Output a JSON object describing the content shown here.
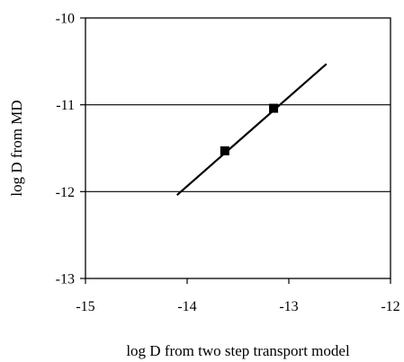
{
  "chart_data": {
    "type": "scatter",
    "title": "",
    "xlabel": "log D from two step transport model",
    "ylabel": "log D from MD",
    "xlim": [
      -15,
      -12
    ],
    "ylim": [
      -13,
      -10
    ],
    "x_ticks": [
      -15,
      -14,
      -13,
      -12
    ],
    "x_tick_labels": [
      "-15",
      "-14",
      "-13",
      "-12"
    ],
    "y_ticks": [
      -13,
      -12,
      -11,
      -10
    ],
    "y_tick_labels": [
      "-13",
      "-12",
      "-11",
      "-10"
    ],
    "grid": "horizontal",
    "legend": "none",
    "points": [
      {
        "x": -13.63,
        "y": -11.53
      },
      {
        "x": -13.15,
        "y": -11.04
      }
    ],
    "fit_line": [
      {
        "x": -14.1,
        "y": -12.04
      },
      {
        "x": -12.63,
        "y": -10.53
      }
    ],
    "colors": {
      "line": "#000000",
      "marker": "#000000",
      "grid": "#000000",
      "frame": "#000000"
    }
  }
}
